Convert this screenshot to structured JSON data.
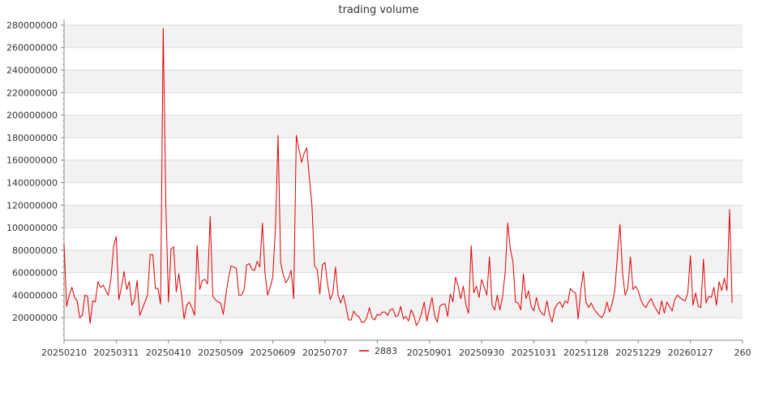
{
  "chart_data": {
    "type": "line",
    "title": "trading volume",
    "xlabel": "",
    "ylabel": "",
    "ylim": [
      0,
      285000000
    ],
    "y_ticks": [
      20000000,
      40000000,
      60000000,
      80000000,
      100000000,
      120000000,
      140000000,
      160000000,
      180000000,
      200000000,
      220000000,
      240000000,
      260000000,
      280000000
    ],
    "y_tick_labels": [
      "20000000",
      "40000000",
      "60000000",
      "80000000",
      "100000000",
      "120000000",
      "140000000",
      "160000000",
      "180000000",
      "200000000",
      "220000000",
      "240000000",
      "260000000",
      "280000000"
    ],
    "x_tick_labels": [
      "20250210",
      "20250311",
      "20250410",
      "20250509",
      "20250609",
      "20250707",
      "20250805",
      "20250901",
      "20250930",
      "20251031",
      "20251128",
      "20251229",
      "20260127",
      "260"
    ],
    "x_range": [
      0,
      260
    ],
    "x_tick_index": [
      0,
      20,
      40,
      60,
      80,
      100,
      120,
      140,
      160,
      180,
      200,
      220,
      240,
      260
    ],
    "grid": true,
    "legend_position": "bottom-center",
    "series": [
      {
        "name": "2883",
        "color": "#dd0000",
        "values": [
          85000000,
          30000000,
          40000000,
          47000000,
          38000000,
          35000000,
          20000000,
          22000000,
          40000000,
          39000000,
          15000000,
          35000000,
          34000000,
          52000000,
          47000000,
          49000000,
          44000000,
          40000000,
          55000000,
          84000000,
          92000000,
          36000000,
          47000000,
          61000000,
          45000000,
          52000000,
          31000000,
          36000000,
          53000000,
          22000000,
          28000000,
          34000000,
          40000000,
          76000000,
          76000000,
          46000000,
          46000000,
          32000000,
          277000000,
          120000000,
          34000000,
          81000000,
          83000000,
          43000000,
          59000000,
          40000000,
          19000000,
          31000000,
          34000000,
          29000000,
          22000000,
          84000000,
          45000000,
          53000000,
          54000000,
          50000000,
          110000000,
          39000000,
          36000000,
          34000000,
          33000000,
          23000000,
          40000000,
          55000000,
          66000000,
          65000000,
          64000000,
          40000000,
          40000000,
          45000000,
          67000000,
          68000000,
          63000000,
          62000000,
          70000000,
          65000000,
          104000000,
          60000000,
          40000000,
          47000000,
          56000000,
          100000000,
          182000000,
          69000000,
          58000000,
          51000000,
          55000000,
          62000000,
          37000000,
          182000000,
          170000000,
          158000000,
          166000000,
          171000000,
          144000000,
          120000000,
          66000000,
          63000000,
          41000000,
          67000000,
          69000000,
          50000000,
          36000000,
          42000000,
          65000000,
          40000000,
          33000000,
          40000000,
          30000000,
          18000000,
          18000000,
          26000000,
          22000000,
          21000000,
          16000000,
          16000000,
          20000000,
          29000000,
          20000000,
          18000000,
          23000000,
          22000000,
          25000000,
          25000000,
          22000000,
          27000000,
          28000000,
          21000000,
          22000000,
          30000000,
          19000000,
          21000000,
          17000000,
          27000000,
          22000000,
          13000000,
          17000000,
          24000000,
          34000000,
          17000000,
          28000000,
          38000000,
          22000000,
          16000000,
          30000000,
          32000000,
          32000000,
          21000000,
          41000000,
          34000000,
          56000000,
          48000000,
          37000000,
          48000000,
          31000000,
          24000000,
          84000000,
          42000000,
          48000000,
          38000000,
          54000000,
          47000000,
          40000000,
          74000000,
          31000000,
          27000000,
          40000000,
          27000000,
          38000000,
          60000000,
          104000000,
          81000000,
          70000000,
          34000000,
          33000000,
          27000000,
          59000000,
          37000000,
          44000000,
          30000000,
          26000000,
          38000000,
          28000000,
          24000000,
          22000000,
          35000000,
          23000000,
          16000000,
          28000000,
          32000000,
          34000000,
          29000000,
          35000000,
          33000000,
          46000000,
          43000000,
          42000000,
          19000000,
          44000000,
          61000000,
          34000000,
          29000000,
          33000000,
          28000000,
          25000000,
          22000000,
          20000000,
          24000000,
          34000000,
          25000000,
          32000000,
          44000000,
          74000000,
          103000000,
          60000000,
          40000000,
          46000000,
          74000000,
          45000000,
          48000000,
          44000000,
          36000000,
          31000000,
          29000000,
          34000000,
          37000000,
          31000000,
          27000000,
          23000000,
          35000000,
          24000000,
          34000000,
          30000000,
          26000000,
          36000000,
          40000000,
          38000000,
          36000000,
          35000000,
          42000000,
          75000000,
          31000000,
          42000000,
          30000000,
          29000000,
          72000000,
          33000000,
          39000000,
          38000000,
          47000000,
          31000000,
          52000000,
          44000000,
          55000000,
          44000000,
          116000000,
          33000000
        ]
      }
    ]
  }
}
